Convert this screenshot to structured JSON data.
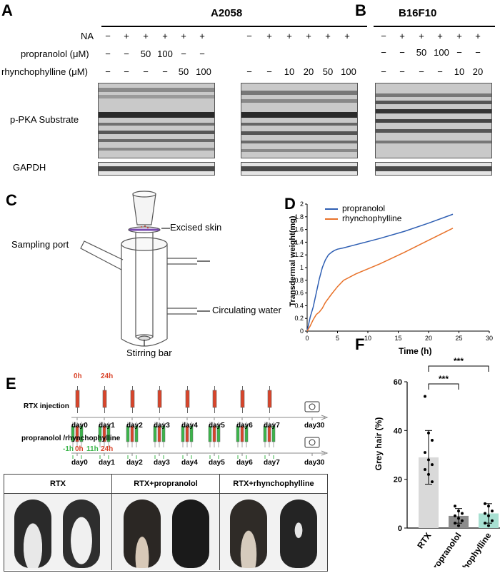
{
  "panels": {
    "A": "A",
    "B": "B",
    "C": "C",
    "D": "D",
    "E": "E",
    "F": "F"
  },
  "blot": {
    "title_a2058": "A2058",
    "title_b16f10": "B16F10",
    "row_labels": [
      "NA",
      "propranolol (μM)",
      "rhynchophylline (μM)"
    ],
    "band_labels": [
      "p-PKA Substrate",
      "GAPDH"
    ],
    "group1": {
      "na": [
        "−",
        "+",
        "+",
        "+",
        "+",
        "+"
      ],
      "prop": [
        "−",
        "−",
        "50",
        "100",
        "−",
        "−"
      ],
      "rhy": [
        "−",
        "−",
        "−",
        "−",
        "50",
        "100"
      ]
    },
    "group2": {
      "na": [
        "−",
        "+",
        "+",
        "+",
        "+",
        "+"
      ],
      "prop": [],
      "rhy": [
        "−",
        "−",
        "10",
        "20",
        "50",
        "100"
      ]
    },
    "group3": {
      "na": [
        "−",
        "+",
        "+",
        "+",
        "+",
        "+"
      ],
      "prop": [
        "−",
        "−",
        "50",
        "100",
        "−",
        "−"
      ],
      "rhy": [
        "−",
        "−",
        "−",
        "−",
        "10",
        "20"
      ]
    }
  },
  "diagram_c": {
    "excised_skin": "Excised skin",
    "sampling_port": "Sampling port",
    "circulating_water": "Circulating water",
    "stirring_bar": "Stirring bar"
  },
  "chart_data": {
    "type": "line",
    "title": "",
    "xlabel": "Time (h)",
    "ylabel": "Transdermal weight(mg)",
    "xlim": [
      0,
      30
    ],
    "ylim": [
      0,
      2
    ],
    "xticks": [
      0,
      5,
      10,
      15,
      20,
      25,
      30
    ],
    "yticks": [
      0,
      0.2,
      0.4,
      0.6,
      0.8,
      1,
      1.2,
      1.4,
      1.6,
      1.8,
      2
    ],
    "legend_position": "top-left",
    "series": [
      {
        "name": "propranolol",
        "color": "#2f5fb3",
        "x": [
          0,
          0.5,
          1,
          1.5,
          2,
          2.5,
          3,
          3.5,
          4,
          4.5,
          5,
          6,
          8,
          12,
          16,
          20,
          24
        ],
        "y": [
          0,
          0.22,
          0.38,
          0.6,
          0.82,
          1.0,
          1.12,
          1.2,
          1.24,
          1.27,
          1.29,
          1.31,
          1.36,
          1.46,
          1.57,
          1.7,
          1.84
        ]
      },
      {
        "name": "rhynchophylline",
        "color": "#e8722a",
        "x": [
          0,
          0.5,
          1,
          1.5,
          2,
          2.5,
          3,
          4,
          5,
          6,
          8,
          10,
          12,
          16,
          20,
          24
        ],
        "y": [
          0,
          0.08,
          0.18,
          0.26,
          0.3,
          0.36,
          0.45,
          0.58,
          0.7,
          0.8,
          0.9,
          0.98,
          1.06,
          1.24,
          1.43,
          1.62
        ]
      }
    ]
  },
  "timeline_e": {
    "rtx_injection": "RTX injection",
    "treatment": "propranolol /rhynchophylline",
    "t_0h": "0h",
    "t_24h": "24h",
    "t_m1h": "-1h",
    "t_11h": "11h",
    "days": [
      "day0",
      "day1",
      "day2",
      "day3",
      "day4",
      "day5",
      "day6",
      "day7",
      "day30"
    ],
    "red": "#d9442a",
    "green": "#3bb54a"
  },
  "photos": {
    "headers": [
      "RTX",
      "RTX+propranolol",
      "RTX+rhynchophylline"
    ]
  },
  "chart_f": {
    "type": "bar",
    "ylabel": "Grey hair (%)",
    "ylim": [
      0,
      60
    ],
    "yticks": [
      0,
      20,
      40,
      60
    ],
    "categories": [
      "RTX",
      "propranolol",
      "rhynchophylline"
    ],
    "values": [
      29,
      5,
      6
    ],
    "errors": [
      11,
      3,
      4
    ],
    "colors": [
      "#d9d9d9",
      "#8c8c8c",
      "#a8e0d2"
    ],
    "points": [
      [
        54,
        39,
        36,
        31,
        28,
        26,
        24,
        22,
        19
      ],
      [
        9,
        7,
        6,
        5,
        4,
        3,
        2,
        1
      ],
      [
        10,
        9,
        7,
        6,
        5,
        3,
        2,
        1
      ]
    ],
    "significance": [
      "***",
      "***"
    ]
  }
}
